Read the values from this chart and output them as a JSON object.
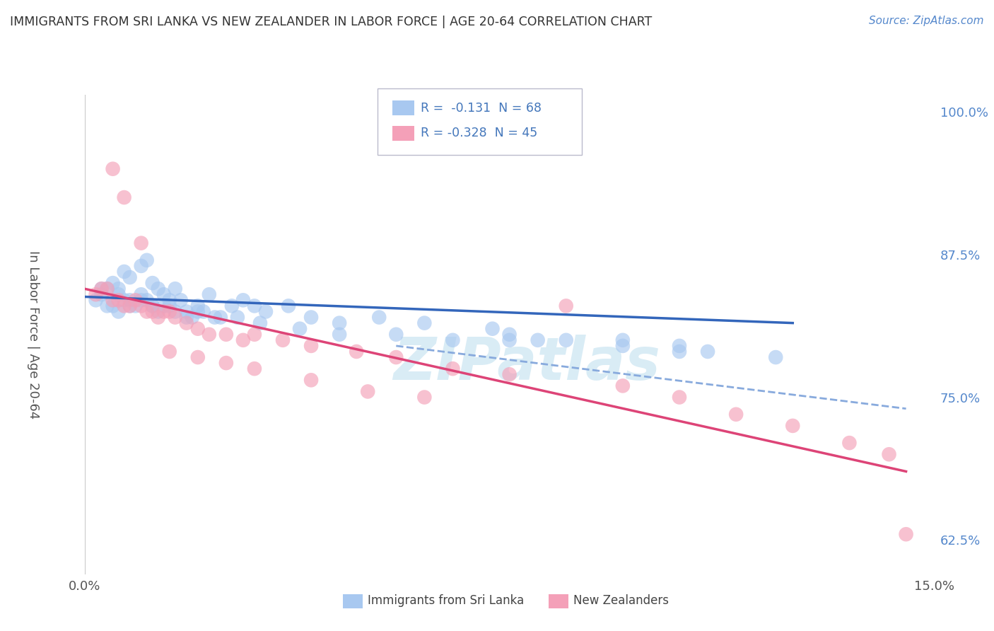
{
  "title": "IMMIGRANTS FROM SRI LANKA VS NEW ZEALANDER IN LABOR FORCE | AGE 20-64 CORRELATION CHART",
  "source": "Source: ZipAtlas.com",
  "ylabel_label": "In Labor Force | Age 20-64",
  "watermark": "ZIPatlas",
  "blue_color": "#a8c8f0",
  "pink_color": "#f4a0b8",
  "blue_line_color": "#3366bb",
  "pink_line_color": "#dd4477",
  "dashed_line_color": "#88aadd",
  "bg_color": "#ffffff",
  "grid_color": "#cccccc",
  "xmin": 0.0,
  "xmax": 15.0,
  "ymin": 59.5,
  "ymax": 101.5,
  "yticks": [
    62.5,
    75.0,
    87.5,
    100.0
  ],
  "blue_scatter_x": [
    0.2,
    0.3,
    0.4,
    0.5,
    0.5,
    0.6,
    0.6,
    0.7,
    0.7,
    0.8,
    0.8,
    0.9,
    1.0,
    1.0,
    1.1,
    1.1,
    1.2,
    1.2,
    1.3,
    1.3,
    1.4,
    1.5,
    1.6,
    1.7,
    1.8,
    1.9,
    2.0,
    2.1,
    2.2,
    2.4,
    2.6,
    2.8,
    3.2,
    3.6,
    4.0,
    4.5,
    5.2,
    6.0,
    7.2,
    7.5,
    8.0,
    9.5,
    10.5,
    11.0,
    12.2,
    3.0,
    1.5,
    0.3,
    0.4,
    0.6,
    0.8,
    1.0,
    1.2,
    1.4,
    1.6,
    1.8,
    2.0,
    2.3,
    2.7,
    3.1,
    3.8,
    4.5,
    5.5,
    6.5,
    7.5,
    8.5,
    9.5,
    10.5
  ],
  "blue_scatter_y": [
    83.5,
    84.0,
    84.5,
    83.0,
    85.0,
    84.5,
    82.5,
    83.5,
    86.0,
    83.0,
    85.5,
    83.0,
    84.0,
    86.5,
    83.5,
    87.0,
    85.0,
    83.0,
    84.5,
    82.5,
    84.0,
    83.0,
    84.5,
    83.5,
    82.5,
    82.0,
    83.0,
    82.5,
    84.0,
    82.0,
    83.0,
    83.5,
    82.5,
    83.0,
    82.0,
    81.5,
    82.0,
    81.5,
    81.0,
    80.5,
    80.0,
    80.0,
    79.5,
    79.0,
    78.5,
    83.0,
    83.5,
    84.5,
    83.0,
    84.0,
    83.5,
    83.5,
    83.0,
    83.0,
    82.5,
    82.0,
    82.5,
    82.0,
    82.0,
    81.5,
    81.0,
    80.5,
    80.5,
    80.0,
    80.0,
    80.0,
    79.5,
    79.0
  ],
  "pink_scatter_x": [
    0.2,
    0.3,
    0.4,
    0.5,
    0.6,
    0.7,
    0.8,
    0.9,
    1.0,
    1.1,
    1.2,
    1.3,
    1.4,
    1.5,
    1.6,
    1.8,
    2.0,
    2.2,
    2.5,
    2.8,
    3.0,
    3.5,
    4.0,
    4.8,
    5.5,
    6.5,
    7.5,
    8.5,
    9.5,
    10.5,
    11.5,
    12.5,
    13.5,
    14.2,
    0.5,
    0.7,
    1.0,
    1.5,
    2.0,
    2.5,
    3.0,
    4.0,
    5.0,
    6.0,
    14.5
  ],
  "pink_scatter_y": [
    84.0,
    84.5,
    84.5,
    83.5,
    83.5,
    83.0,
    83.0,
    83.5,
    83.0,
    82.5,
    82.5,
    82.0,
    82.5,
    82.5,
    82.0,
    81.5,
    81.0,
    80.5,
    80.5,
    80.0,
    80.5,
    80.0,
    79.5,
    79.0,
    78.5,
    77.5,
    77.0,
    83.0,
    76.0,
    75.0,
    73.5,
    72.5,
    71.0,
    70.0,
    95.0,
    92.5,
    88.5,
    79.0,
    78.5,
    78.0,
    77.5,
    76.5,
    75.5,
    75.0,
    63.0
  ],
  "blue_trend_x": [
    0.0,
    12.5
  ],
  "blue_trend_y": [
    83.8,
    81.5
  ],
  "pink_trend_x": [
    0.0,
    14.5
  ],
  "pink_trend_y": [
    84.5,
    68.5
  ],
  "dashed_trend_x": [
    5.5,
    14.5
  ],
  "dashed_trend_y": [
    79.5,
    74.0
  ]
}
